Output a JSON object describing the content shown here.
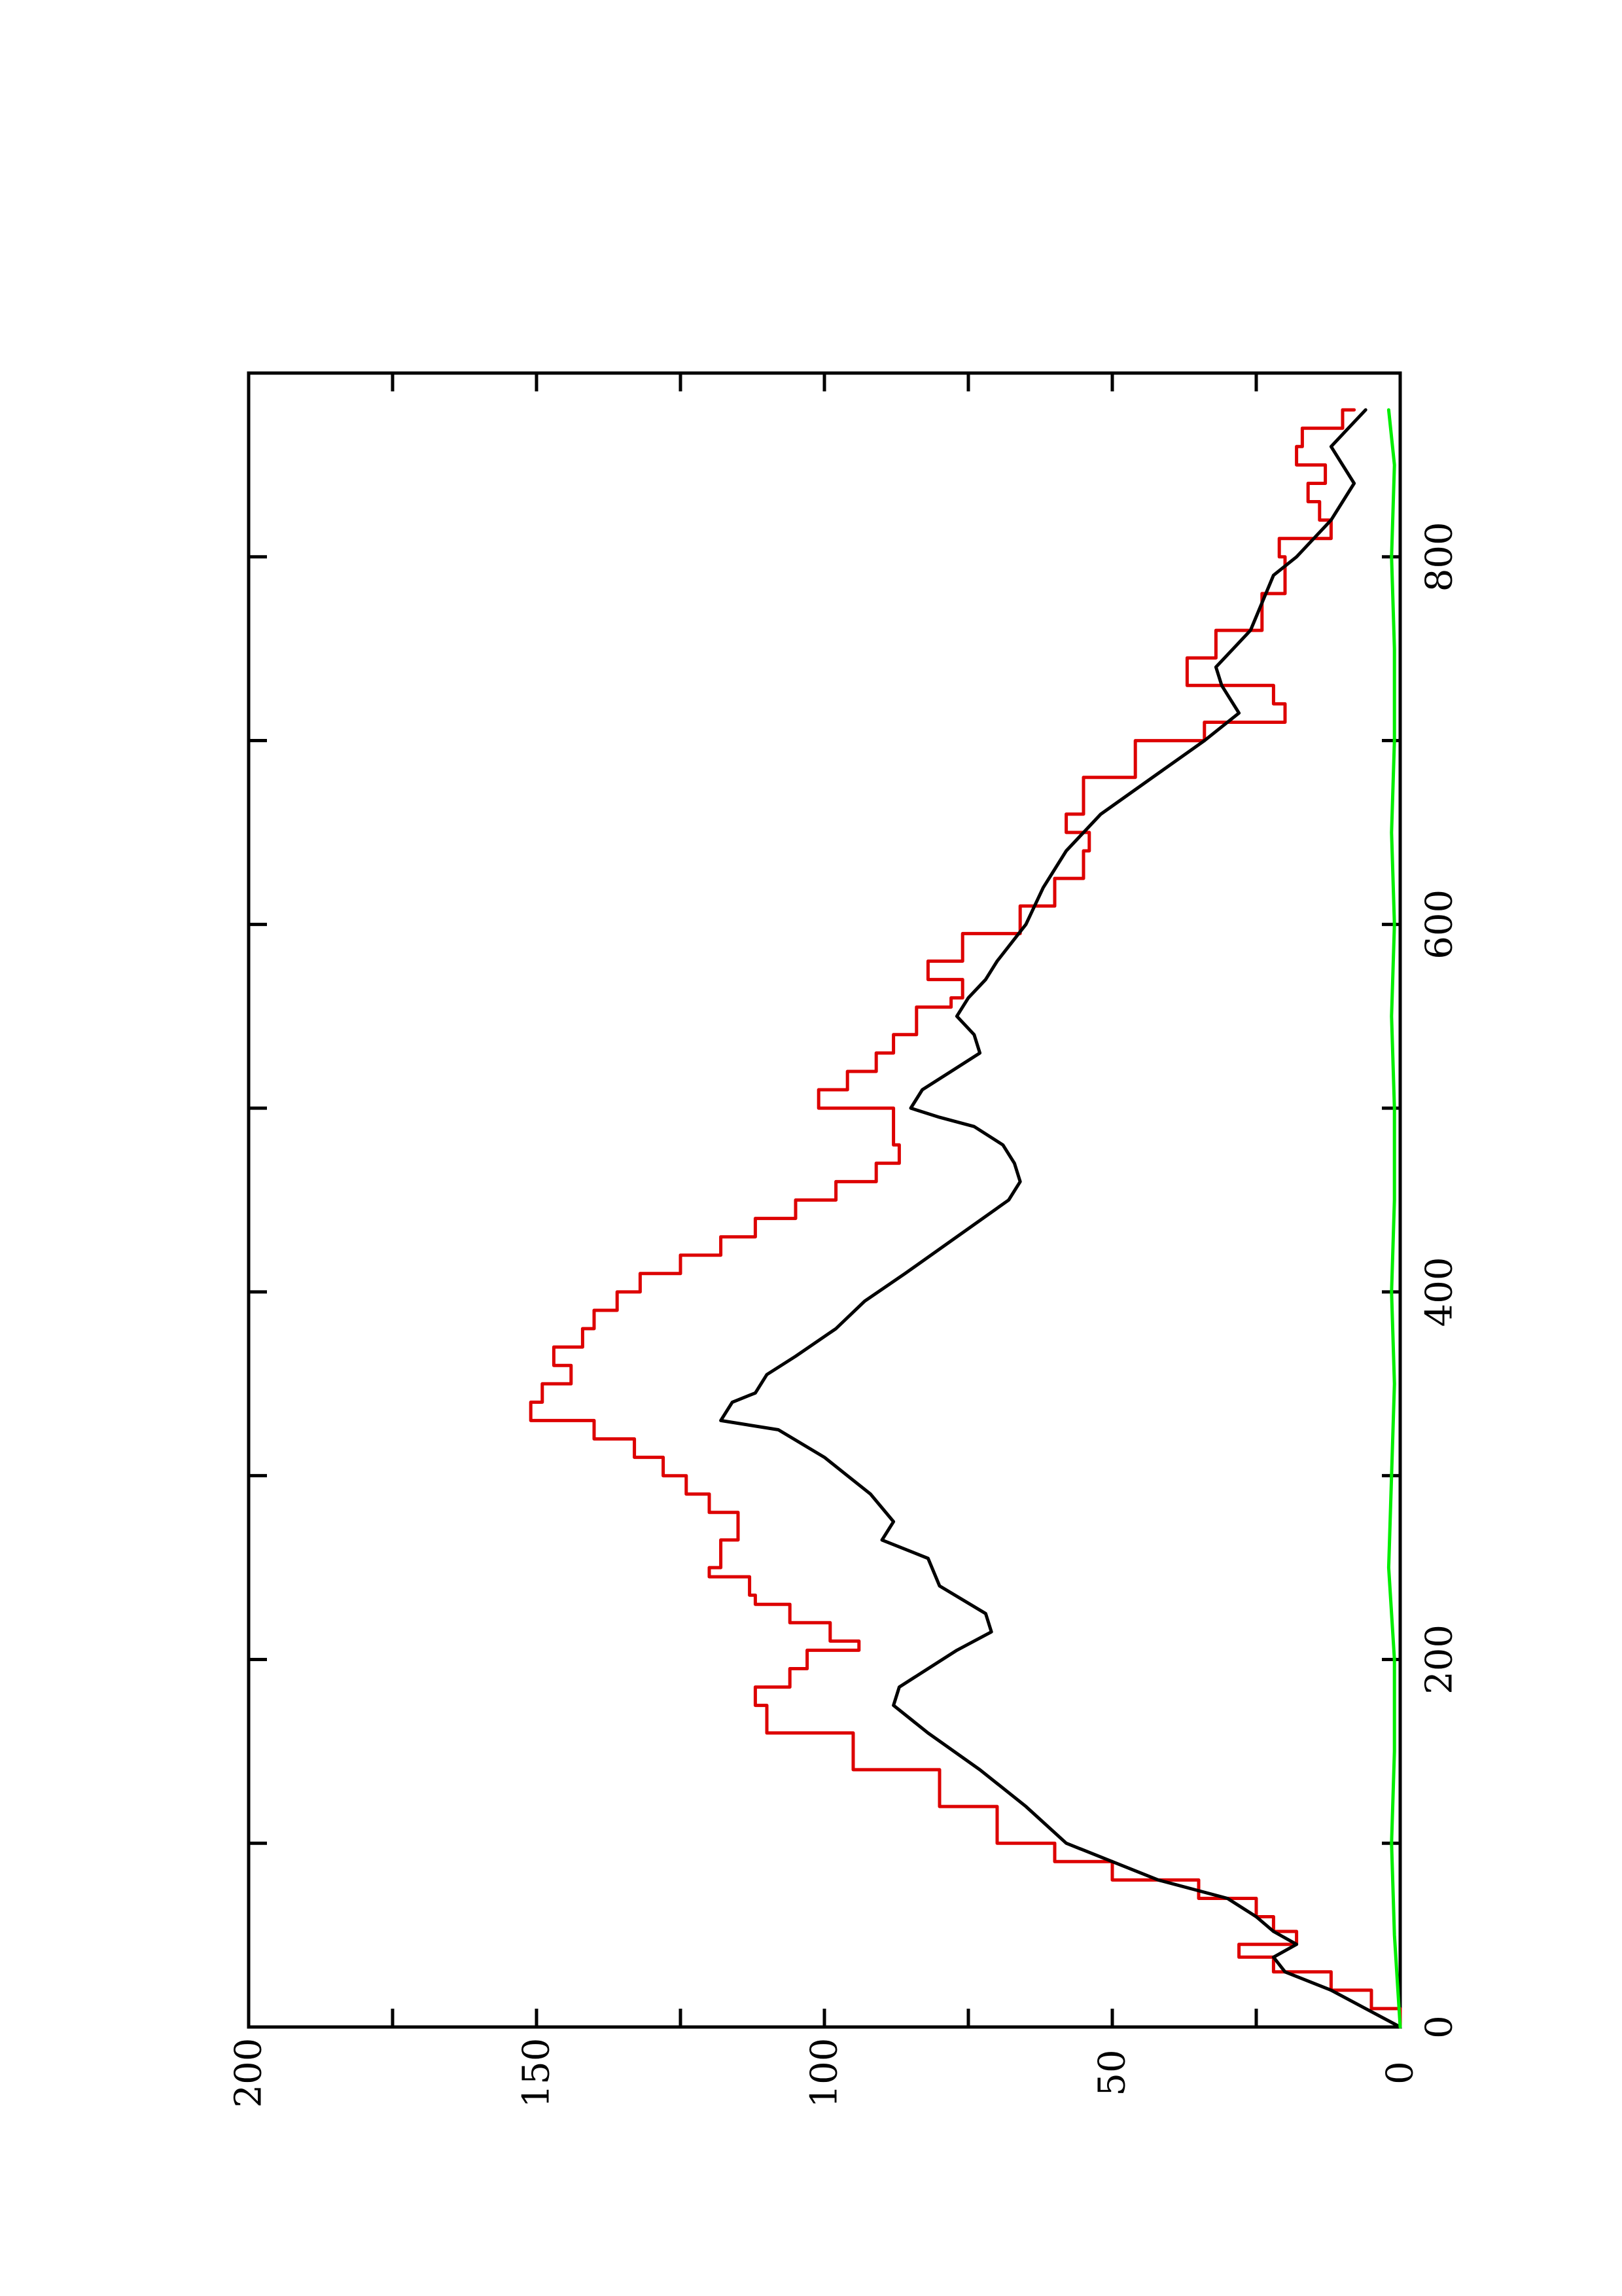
{
  "chart_data": {
    "type": "line",
    "title": "",
    "xlabel": "",
    "ylabel": "",
    "orientation": "rotated-90-ccw",
    "xlim": [
      0,
      900
    ],
    "ylim": [
      0,
      200
    ],
    "grid": false,
    "x_ticks": [
      0,
      100,
      200,
      300,
      400,
      500,
      600,
      700,
      800
    ],
    "x_tick_labels": [
      "0",
      "",
      "200",
      "",
      "400",
      "",
      "600",
      "",
      "800"
    ],
    "y_ticks": [
      0,
      25,
      50,
      75,
      100,
      125,
      150,
      175,
      200
    ],
    "y_tick_labels": [
      "0",
      "",
      "50",
      "",
      "100",
      "",
      "150",
      "",
      "200"
    ],
    "series": [
      {
        "color": "#dd0000",
        "style": "step",
        "x": [
          0,
          10,
          20,
          30,
          38,
          45,
          52,
          60,
          70,
          80,
          90,
          100,
          120,
          140,
          160,
          175,
          185,
          195,
          205,
          210,
          220,
          230,
          235,
          245,
          250,
          265,
          280,
          290,
          300,
          310,
          320,
          330,
          340,
          350,
          360,
          370,
          380,
          390,
          400,
          410,
          420,
          430,
          440,
          450,
          460,
          470,
          480,
          500,
          510,
          520,
          530,
          540,
          555,
          560,
          570,
          580,
          595,
          610,
          625,
          640,
          650,
          660,
          680,
          700,
          710,
          720,
          730,
          745,
          760,
          780,
          800,
          810,
          820,
          830,
          840,
          850,
          860,
          870,
          880
        ],
        "y": [
          0,
          5,
          12,
          22,
          28,
          18,
          22,
          25,
          35,
          50,
          60,
          70,
          80,
          95,
          110,
          112,
          106,
          103,
          94,
          99,
          106,
          112,
          113,
          120,
          118,
          115,
          120,
          124,
          128,
          133,
          140,
          151,
          149,
          144,
          147,
          142,
          140,
          136,
          132,
          125,
          118,
          112,
          105,
          98,
          91,
          87,
          88,
          101,
          96,
          91,
          88,
          84,
          78,
          76,
          82,
          76,
          66,
          60,
          55,
          54,
          58,
          55,
          46,
          34,
          20,
          22,
          37,
          32,
          24,
          20,
          21,
          12,
          14,
          16,
          13,
          18,
          17,
          10,
          8
        ]
      },
      {
        "color": "#000000",
        "style": "line",
        "x": [
          0,
          10,
          20,
          30,
          38,
          45,
          52,
          60,
          70,
          80,
          90,
          100,
          120,
          140,
          160,
          175,
          185,
          195,
          205,
          215,
          225,
          240,
          255,
          265,
          275,
          290,
          300,
          310,
          325,
          330,
          340,
          345,
          355,
          365,
          380,
          395,
          410,
          430,
          450,
          460,
          470,
          480,
          490,
          495,
          500,
          510,
          520,
          530,
          540,
          550,
          560,
          570,
          580,
          600,
          620,
          640,
          660,
          680,
          700,
          715,
          730,
          740,
          750,
          760,
          775,
          790,
          800,
          810,
          820,
          830,
          840,
          850,
          860,
          870,
          880
        ],
        "y": [
          0,
          6,
          12,
          20,
          22,
          18,
          22,
          25,
          30,
          42,
          50,
          58,
          65,
          73,
          82,
          88,
          87,
          82,
          77,
          71,
          72,
          80,
          82,
          90,
          88,
          92,
          96,
          100,
          108,
          118,
          116,
          112,
          110,
          105,
          98,
          93,
          86,
          77,
          68,
          66,
          67,
          69,
          74,
          80,
          85,
          83,
          78,
          73,
          74,
          77,
          75,
          72,
          70,
          65,
          62,
          58,
          52,
          43,
          34,
          28,
          31,
          32,
          29,
          26,
          24,
          22,
          18,
          15,
          12,
          10,
          8,
          10,
          12,
          9,
          6
        ]
      },
      {
        "color": "#00ee00",
        "style": "line",
        "x": [
          0,
          50,
          100,
          150,
          200,
          250,
          300,
          350,
          400,
          450,
          500,
          550,
          600,
          650,
          700,
          750,
          800,
          850,
          880
        ],
        "y": [
          0,
          1,
          1.5,
          1,
          1,
          2,
          1.5,
          1,
          1.5,
          1,
          1,
          1.5,
          1,
          1.5,
          1,
          1,
          1.5,
          1,
          2
        ]
      }
    ]
  }
}
